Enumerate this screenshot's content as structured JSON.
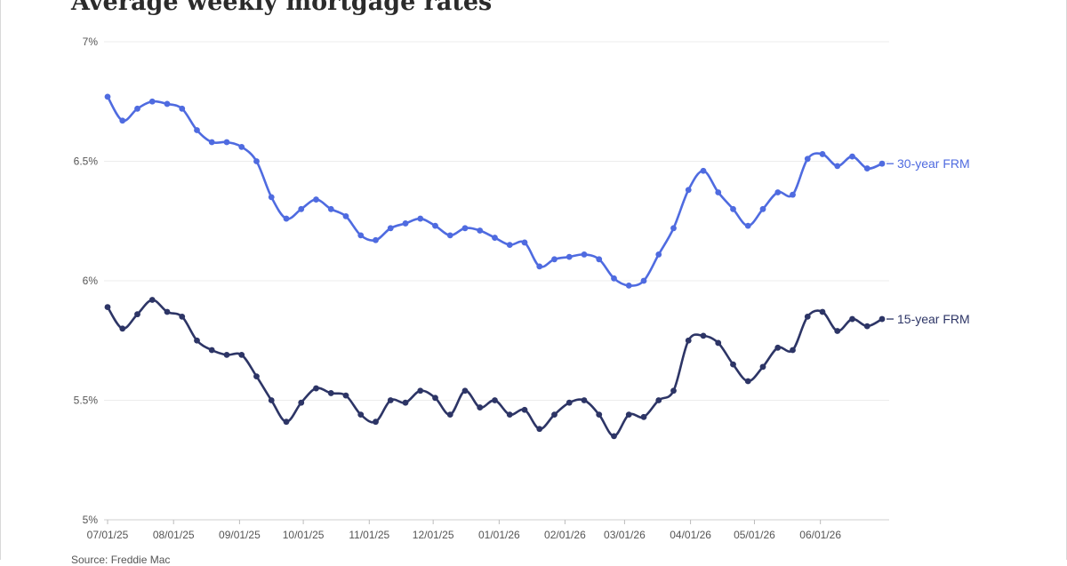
{
  "title": "Average weekly mortgage rates",
  "source": "Source: Freddie Mac",
  "colors": {
    "series_30": "#4f6be0",
    "series_15": "#2d3566",
    "grid": "#ececec",
    "axis_text": "#555555"
  },
  "chart_data": {
    "type": "line",
    "title": "Average weekly mortgage rates",
    "xlabel": "",
    "ylabel": "",
    "ylim": [
      5,
      7
    ],
    "yticks": [
      5,
      5.5,
      6,
      6.5,
      7
    ],
    "ytick_labels": [
      "5%",
      "5.5%",
      "6%",
      "6.5%",
      "7%"
    ],
    "x_start": "07/01/25",
    "x_tick_labels": [
      "07/01/25",
      "08/01/25",
      "09/01/25",
      "10/01/25",
      "11/01/25",
      "12/01/25",
      "01/01/26",
      "02/01/26",
      "03/01/26",
      "04/01/26",
      "05/01/26",
      "06/01/26"
    ],
    "x_tick_weeks": [
      0,
      4.43,
      8.86,
      13.14,
      17.57,
      21.86,
      26.29,
      30.71,
      34.71,
      39.14,
      43.43,
      47.86
    ],
    "grid": true,
    "legend": "end-of-line labels",
    "series": [
      {
        "name": "30-year FRM",
        "values": [
          6.77,
          6.67,
          6.72,
          6.75,
          6.74,
          6.72,
          6.63,
          6.58,
          6.58,
          6.56,
          6.5,
          6.35,
          6.26,
          6.3,
          6.34,
          6.3,
          6.27,
          6.19,
          6.17,
          6.22,
          6.24,
          6.26,
          6.23,
          6.19,
          6.22,
          6.21,
          6.18,
          6.15,
          6.16,
          6.06,
          6.09,
          6.1,
          6.11,
          6.09,
          6.01,
          5.98,
          6.0,
          6.11,
          6.22,
          6.38,
          6.46,
          6.37,
          6.3,
          6.23,
          6.3,
          6.37,
          6.36,
          6.51,
          6.53,
          6.48,
          6.52,
          6.47,
          6.49
        ]
      },
      {
        "name": "15-year FRM",
        "values": [
          5.89,
          5.8,
          5.86,
          5.92,
          5.87,
          5.85,
          5.75,
          5.71,
          5.69,
          5.69,
          5.6,
          5.5,
          5.41,
          5.49,
          5.55,
          5.53,
          5.52,
          5.44,
          5.41,
          5.5,
          5.49,
          5.54,
          5.51,
          5.44,
          5.54,
          5.47,
          5.5,
          5.44,
          5.46,
          5.38,
          5.44,
          5.49,
          5.5,
          5.44,
          5.35,
          5.44,
          5.43,
          5.5,
          5.54,
          5.75,
          5.77,
          5.74,
          5.65,
          5.58,
          5.64,
          5.72,
          5.71,
          5.85,
          5.87,
          5.79,
          5.84,
          5.81,
          5.84
        ]
      }
    ]
  }
}
